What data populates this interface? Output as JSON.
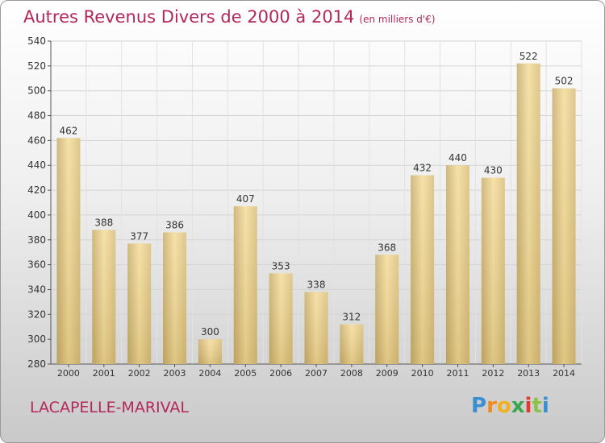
{
  "title": "Autres Revenus Divers de 2000 à 2014",
  "unit_note": "(en milliers d'€)",
  "city": "LACAPELLE-MARIVAL",
  "brand": {
    "letters": [
      "P",
      "r",
      "o",
      "x",
      "i",
      "t",
      "i"
    ],
    "colors": [
      "#3a8fd1",
      "#f08a1c",
      "#f0b21c",
      "#3aa64a",
      "#e23a2e",
      "#8bc34a",
      "#3a8fd1"
    ]
  },
  "colors": {
    "accent": "#b5275a",
    "bar_light": "#f4dc9a",
    "bar_dark": "#c8ad6a"
  },
  "chart_data": {
    "type": "bar",
    "categories": [
      "2000",
      "2001",
      "2002",
      "2003",
      "2004",
      "2005",
      "2006",
      "2007",
      "2008",
      "2009",
      "2010",
      "2011",
      "2012",
      "2013",
      "2014"
    ],
    "values": [
      462,
      388,
      377,
      386,
      300,
      407,
      353,
      338,
      312,
      368,
      432,
      440,
      430,
      522,
      502
    ],
    "ylim": [
      280,
      540
    ],
    "yticks": [
      280,
      300,
      320,
      340,
      360,
      380,
      400,
      420,
      440,
      460,
      480,
      500,
      520,
      540
    ],
    "grid": true,
    "title": "Autres Revenus Divers de 2000 à 2014",
    "xlabel": "",
    "ylabel": ""
  }
}
